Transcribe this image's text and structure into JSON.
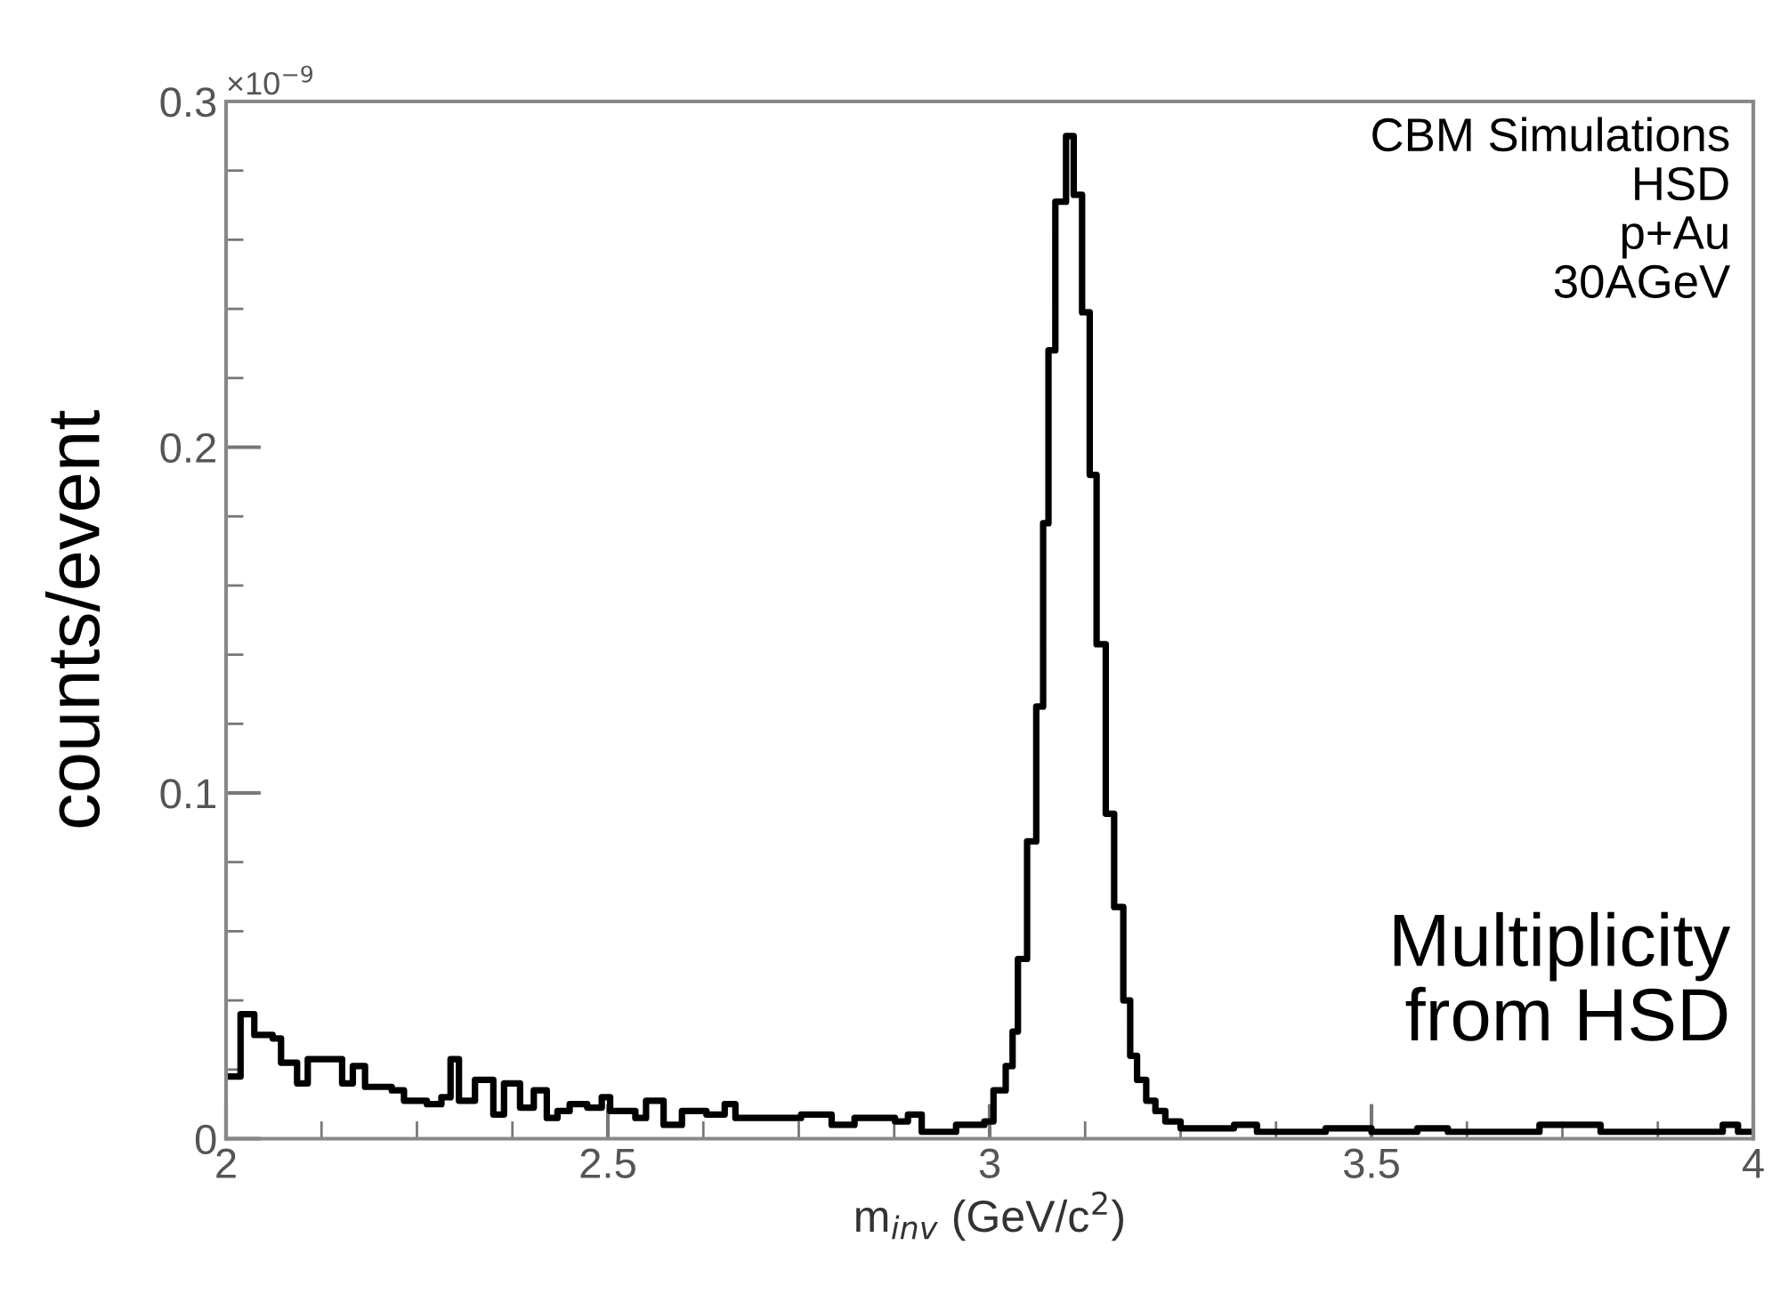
{
  "chart_data": {
    "type": "step",
    "xlabel": "m$_{inv}$ (GeV/c$^{2}$)",
    "ylabel": "counts/event",
    "annotations": [
      "×10$^{−9}$",
      "CBM Simulations\nHSD\np+Au\n30AGeV",
      "Multiplicity\nfrom HSD"
    ],
    "xlim": [
      2,
      4
    ],
    "ylim": [
      0,
      0.3
    ],
    "xticks": [
      2,
      2.5,
      3,
      3.5,
      4
    ],
    "yticks": [
      0,
      0.1,
      0.2,
      0.3
    ],
    "grid": false,
    "legend": false,
    "series": [
      {
        "color": "#000000",
        "x": [
          2.0,
          2.007,
          2.019,
          2.037,
          2.061,
          2.072,
          2.093,
          2.107,
          2.14,
          2.152,
          2.166,
          2.182,
          2.217,
          2.233,
          2.263,
          2.282,
          2.294,
          2.305,
          2.326,
          2.35,
          2.364,
          2.385,
          2.403,
          2.42,
          2.434,
          2.45,
          2.473,
          2.492,
          2.503,
          2.536,
          2.55,
          2.573,
          2.597,
          2.629,
          2.653,
          2.667,
          2.723,
          2.753,
          2.793,
          2.823,
          2.876,
          2.893,
          2.911,
          2.956,
          2.993,
          3.005,
          3.021,
          3.03,
          3.037,
          3.049,
          3.061,
          3.07,
          3.077,
          3.086,
          3.1,
          3.11,
          3.121,
          3.131,
          3.14,
          3.152,
          3.163,
          3.175,
          3.184,
          3.193,
          3.205,
          3.217,
          3.23,
          3.25,
          3.3,
          3.32,
          3.35,
          3.4,
          3.44,
          3.5,
          3.56,
          3.6,
          3.7,
          3.72,
          3.8,
          3.9,
          3.96,
          3.98,
          4.0
        ],
        "values": [
          0.018,
          0.018,
          0.036,
          0.03,
          0.029,
          0.022,
          0.016,
          0.023,
          0.023,
          0.016,
          0.021,
          0.015,
          0.014,
          0.011,
          0.01,
          0.012,
          0.023,
          0.011,
          0.017,
          0.007,
          0.016,
          0.009,
          0.014,
          0.006,
          0.008,
          0.01,
          0.009,
          0.012,
          0.008,
          0.006,
          0.011,
          0.004,
          0.008,
          0.007,
          0.01,
          0.006,
          0.006,
          0.007,
          0.004,
          0.006,
          0.005,
          0.007,
          0.002,
          0.004,
          0.005,
          0.014,
          0.021,
          0.031,
          0.052,
          0.086,
          0.125,
          0.178,
          0.228,
          0.271,
          0.29,
          0.273,
          0.239,
          0.192,
          0.143,
          0.094,
          0.067,
          0.04,
          0.024,
          0.017,
          0.011,
          0.008,
          0.005,
          0.003,
          0.003,
          0.004,
          0.002,
          0.002,
          0.003,
          0.002,
          0.003,
          0.002,
          0.002,
          0.004,
          0.002,
          0.002,
          0.004,
          0.002,
          0.002
        ]
      }
    ]
  }
}
